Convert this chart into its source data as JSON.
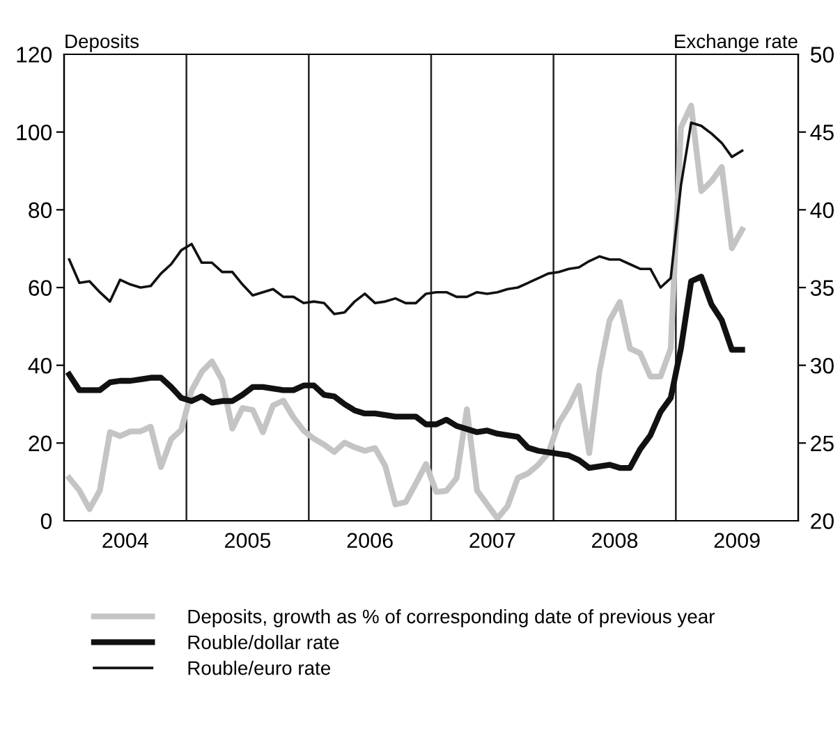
{
  "chart_data": {
    "type": "line",
    "ylabel": "Deposits",
    "y2label": "Exchange rate",
    "x": [
      2004.042,
      2004.125,
      2004.208,
      2004.292,
      2004.375,
      2004.458,
      2004.542,
      2004.625,
      2004.708,
      2004.792,
      2004.875,
      2004.958,
      2005.042,
      2005.125,
      2005.208,
      2005.292,
      2005.375,
      2005.458,
      2005.542,
      2005.625,
      2005.708,
      2005.792,
      2005.875,
      2005.958,
      2006.042,
      2006.125,
      2006.208,
      2006.292,
      2006.375,
      2006.458,
      2006.542,
      2006.625,
      2006.708,
      2006.792,
      2006.875,
      2006.958,
      2007.042,
      2007.125,
      2007.208,
      2007.292,
      2007.375,
      2007.458,
      2007.542,
      2007.625,
      2007.708,
      2007.792,
      2007.875,
      2007.958,
      2008.042,
      2008.125,
      2008.208,
      2008.292,
      2008.375,
      2008.458,
      2008.542,
      2008.625,
      2008.708,
      2008.792,
      2008.875,
      2008.958,
      2009.042,
      2009.125,
      2009.208,
      2009.292,
      2009.375,
      2009.458,
      2009.542
    ],
    "series": [
      {
        "name": "Deposits, growth as % of corresponding date of previous year",
        "color": "#c4c4c4",
        "values": [
          11.0,
          7.8,
          3.0,
          7.8,
          22.8,
          21.8,
          23.0,
          23.0,
          24.2,
          13.8,
          21.0,
          23.4,
          33.5,
          38.3,
          41.0,
          36.2,
          23.7,
          29.0,
          28.5,
          22.8,
          29.7,
          30.9,
          26.6,
          23.2,
          21.1,
          19.6,
          17.7,
          20.1,
          18.9,
          18.0,
          18.7,
          14.1,
          4.2,
          4.8,
          9.6,
          14.6,
          7.4,
          7.7,
          11.0,
          28.7,
          7.8,
          4.2,
          0.6,
          3.8,
          11.0,
          12.2,
          14.4,
          17.4,
          25.1,
          29.3,
          34.7,
          17.4,
          38.3,
          51.5,
          56.3,
          44.3,
          43.1,
          37.1,
          37.1,
          44.3,
          101.2,
          106.8,
          84.8,
          87.4,
          91.0,
          70.1,
          74.9
        ]
      },
      {
        "name": "Rouble/dollar rate",
        "color": "#111111",
        "axis": "y2",
        "values": [
          29.4,
          28.4,
          28.4,
          28.4,
          28.9,
          29.0,
          29.0,
          29.1,
          29.2,
          29.2,
          28.6,
          27.9,
          27.7,
          28.0,
          27.6,
          27.7,
          27.7,
          28.1,
          28.6,
          28.6,
          28.5,
          28.4,
          28.4,
          28.7,
          28.7,
          28.1,
          28.0,
          27.5,
          27.1,
          26.9,
          26.9,
          26.8,
          26.7,
          26.7,
          26.7,
          26.2,
          26.2,
          26.5,
          26.1,
          25.9,
          25.7,
          25.8,
          25.6,
          25.5,
          25.4,
          24.7,
          24.5,
          24.4,
          24.3,
          24.2,
          23.9,
          23.4,
          23.5,
          23.6,
          23.4,
          23.4,
          24.6,
          25.5,
          27.0,
          27.9,
          31.1,
          35.4,
          35.7,
          33.9,
          32.9,
          31.0,
          31.0
        ]
      },
      {
        "name": "Rouble/euro rate",
        "color": "#111111",
        "axis": "y2",
        "values": [
          36.8,
          35.3,
          35.4,
          34.7,
          34.1,
          35.5,
          35.2,
          35.0,
          35.1,
          35.9,
          36.5,
          37.4,
          37.8,
          36.6,
          36.6,
          36.0,
          36.0,
          35.2,
          34.5,
          34.7,
          34.9,
          34.4,
          34.4,
          34.0,
          34.1,
          34.0,
          33.3,
          33.4,
          34.1,
          34.6,
          34.0,
          34.1,
          34.3,
          34.0,
          34.0,
          34.6,
          34.7,
          34.7,
          34.4,
          34.4,
          34.7,
          34.6,
          34.7,
          34.9,
          35.0,
          35.3,
          35.6,
          35.9,
          36.0,
          36.2,
          36.3,
          36.7,
          37.0,
          36.8,
          36.8,
          36.5,
          36.2,
          36.2,
          35.0,
          35.6,
          41.6,
          45.6,
          45.4,
          44.9,
          44.3,
          43.4,
          43.8
        ]
      }
    ],
    "xlim": [
      2004,
      2010
    ],
    "xticks": [
      {
        "value": 2004.5,
        "label": "2004"
      },
      {
        "value": 2005.5,
        "label": "2005"
      },
      {
        "value": 2006.5,
        "label": "2006"
      },
      {
        "value": 2007.5,
        "label": "2007"
      },
      {
        "value": 2008.5,
        "label": "2008"
      },
      {
        "value": 2009.5,
        "label": "2009"
      }
    ],
    "ylim": [
      0,
      120
    ],
    "yticks": [
      0,
      20,
      40,
      60,
      80,
      100,
      120
    ],
    "y2lim": [
      20,
      50
    ],
    "y2ticks": [
      20,
      25,
      30,
      35,
      40,
      45,
      50
    ],
    "ref_lines": [
      {
        "axis": "x",
        "value": 2005,
        "color": "#222222"
      },
      {
        "axis": "x",
        "value": 2006,
        "color": "#222222"
      },
      {
        "axis": "x",
        "value": 2007,
        "color": "#222222"
      },
      {
        "axis": "x",
        "value": 2008,
        "color": "#222222"
      },
      {
        "axis": "x",
        "value": 2009,
        "color": "#222222"
      }
    ],
    "grid": false,
    "legend": "bottom"
  }
}
